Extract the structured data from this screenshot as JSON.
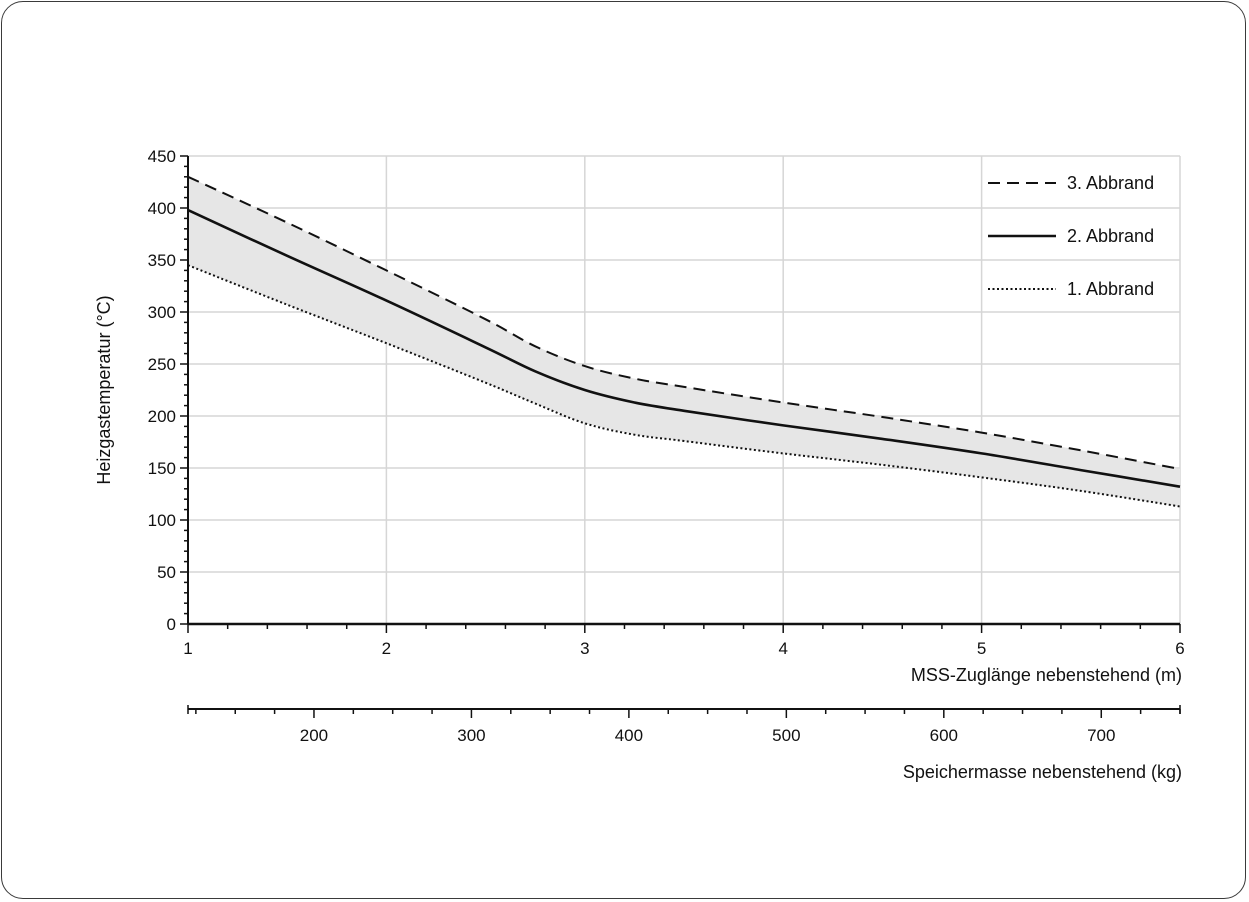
{
  "chart_data": {
    "type": "line",
    "title": "",
    "xlabel": "MSS-Zuglänge nebenstehend (m)",
    "ylabel": "Heizgastemperatur (°C)",
    "xlim": [
      1,
      6
    ],
    "ylim": [
      0,
      450
    ],
    "x_ticks": [
      1,
      2,
      3,
      4,
      5,
      6
    ],
    "y_ticks": [
      0,
      50,
      100,
      150,
      200,
      250,
      300,
      350,
      400,
      450
    ],
    "grid": true,
    "legend_position": "top-right",
    "band_fill": "#e6e6e6",
    "secondary_axis": {
      "label": "Speichermasse nebenstehend (kg)",
      "range": [
        120,
        750
      ],
      "ticks": [
        200,
        300,
        400,
        500,
        600,
        700
      ]
    },
    "series": [
      {
        "name": "3. Abbrand",
        "style": "dashed",
        "color": "#111111",
        "points": [
          [
            1,
            430
          ],
          [
            1.5,
            386
          ],
          [
            2,
            340
          ],
          [
            2.5,
            293
          ],
          [
            2.75,
            267
          ],
          [
            3,
            248
          ],
          [
            3.25,
            236
          ],
          [
            3.5,
            228
          ],
          [
            4,
            213
          ],
          [
            4.5,
            199
          ],
          [
            5,
            184
          ],
          [
            5.5,
            167
          ],
          [
            6,
            149
          ]
        ]
      },
      {
        "name": "2. Abbrand",
        "style": "solid",
        "color": "#111111",
        "points": [
          [
            1,
            398
          ],
          [
            1.5,
            354
          ],
          [
            2,
            311
          ],
          [
            2.5,
            266
          ],
          [
            2.75,
            243
          ],
          [
            3,
            225
          ],
          [
            3.25,
            213
          ],
          [
            3.5,
            205
          ],
          [
            4,
            191
          ],
          [
            4.5,
            178
          ],
          [
            5,
            164
          ],
          [
            5.5,
            148
          ],
          [
            6,
            132
          ]
        ]
      },
      {
        "name": "1. Abbrand",
        "style": "dotted",
        "color": "#111111",
        "points": [
          [
            1,
            345
          ],
          [
            1.5,
            307
          ],
          [
            2,
            270
          ],
          [
            2.5,
            232
          ],
          [
            2.75,
            212
          ],
          [
            3,
            193
          ],
          [
            3.25,
            182
          ],
          [
            3.5,
            176
          ],
          [
            4,
            164
          ],
          [
            4.5,
            153
          ],
          [
            5,
            141
          ],
          [
            5.5,
            128
          ],
          [
            6,
            113
          ]
        ]
      }
    ]
  }
}
